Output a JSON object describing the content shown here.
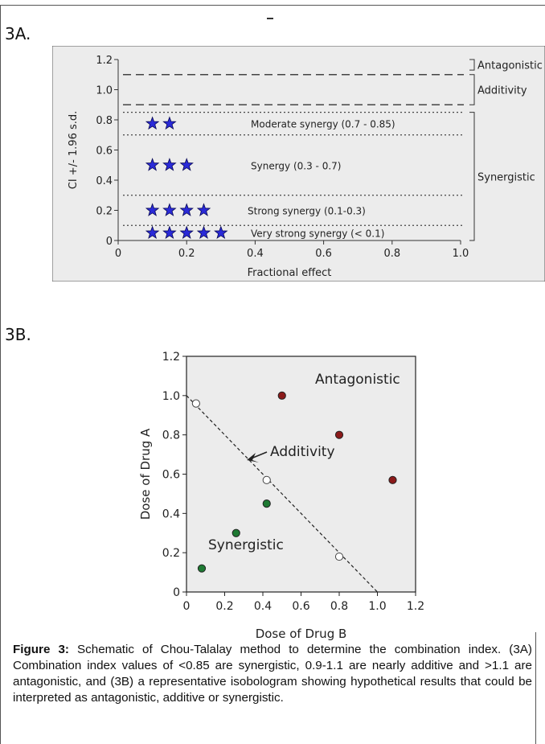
{
  "panels": {
    "a_label": "3A.",
    "b_label": "3B."
  },
  "chart_data": [
    {
      "id": "3A",
      "type": "scatter",
      "ylabel": "CI +/- 1.96 s.d.",
      "xlabel": "Fractional effect",
      "xlim": [
        0,
        1.0
      ],
      "ylim": [
        0,
        1.2
      ],
      "x_ticks": [
        "0",
        "0.2",
        "0.4",
        "0.6",
        "0.8",
        "1.0"
      ],
      "x_tick_values": [
        0,
        0.2,
        0.4,
        0.6,
        0.8,
        1.0
      ],
      "y_ticks": [
        "0",
        "0.2",
        "0.4",
        "0.6",
        "0.8",
        "1.0",
        "1.2"
      ],
      "y_tick_values": [
        0,
        0.2,
        0.4,
        0.6,
        0.8,
        1.0,
        1.2
      ],
      "dashed_lines": [
        1.1,
        0.9
      ],
      "dotted_lines": [
        0.85,
        0.7,
        0.3,
        0.1
      ],
      "bands": [
        {
          "label": "Moderate synergy (0.7 - 0.85)",
          "stars": 2,
          "y": 0.775
        },
        {
          "label": "Synergy (0.3 - 0.7)",
          "stars": 3,
          "y": 0.5
        },
        {
          "label": "Strong synergy (0.1-0.3)",
          "stars": 4,
          "y": 0.2
        },
        {
          "label": "Very strong synergy (< 0.1)",
          "stars": 5,
          "y": 0.05
        }
      ],
      "star_x": [
        0.1,
        0.15,
        0.2,
        0.25,
        0.3
      ],
      "star_color": "#2a2ad8",
      "right_labels": [
        {
          "label": "Antagonistic",
          "from": 1.13,
          "to": 1.2
        },
        {
          "label": "Additivity",
          "from": 0.9,
          "to": 1.1
        },
        {
          "label": "Synergistic",
          "from": 0.0,
          "to": 0.85
        }
      ]
    },
    {
      "id": "3B",
      "type": "scatter",
      "xlabel": "Dose of Drug B",
      "ylabel": "Dose of Drug A",
      "xlim": [
        0,
        1.2
      ],
      "ylim": [
        0,
        1.2
      ],
      "x_ticks": [
        "0",
        "0.2",
        "0.4",
        "0.6",
        "0.8",
        "1.0",
        "1.2"
      ],
      "x_tick_values": [
        0,
        0.2,
        0.4,
        0.6,
        0.8,
        1.0,
        1.2
      ],
      "y_ticks": [
        "0",
        "0.2",
        "0.4",
        "0.6",
        "0.8",
        "1.0",
        "1.2"
      ],
      "y_tick_values": [
        0,
        0.2,
        0.4,
        0.6,
        0.8,
        1.0,
        1.2
      ],
      "additivity_line": [
        [
          0,
          1.0
        ],
        [
          1.0,
          0.0
        ]
      ],
      "series": [
        {
          "name": "",
          "color": "#8b1a1a",
          "fill": "#8b1a1a",
          "points": [
            [
              0.5,
              1.0
            ],
            [
              0.8,
              0.8
            ],
            [
              1.08,
              0.57
            ]
          ]
        },
        {
          "name": "",
          "color": "#555555",
          "fill": "#ffffff",
          "points": [
            [
              0.05,
              0.96
            ],
            [
              0.42,
              0.57
            ],
            [
              0.8,
              0.18
            ]
          ]
        },
        {
          "name": "",
          "color": "#1e7a33",
          "fill": "#1e7a33",
          "points": [
            [
              0.08,
              0.12
            ],
            [
              0.26,
              0.3
            ],
            [
              0.42,
              0.45
            ]
          ]
        }
      ],
      "annotations": [
        {
          "text": "Antagonistic"
        },
        {
          "text": "Additivity"
        },
        {
          "text": "Synergistic"
        }
      ]
    }
  ],
  "caption": {
    "label": "Figure 3:",
    "text": " Schematic of Chou-Talalay method to determine the combination index. (3A) Combination index values of <0.85 are synergistic, 0.9-1.1 are nearly additive and >1.1 are antagonistic, and (3B) a representative isobologram showing hypothetical results that could be interpreted as antagonistic, additive or synergistic."
  }
}
